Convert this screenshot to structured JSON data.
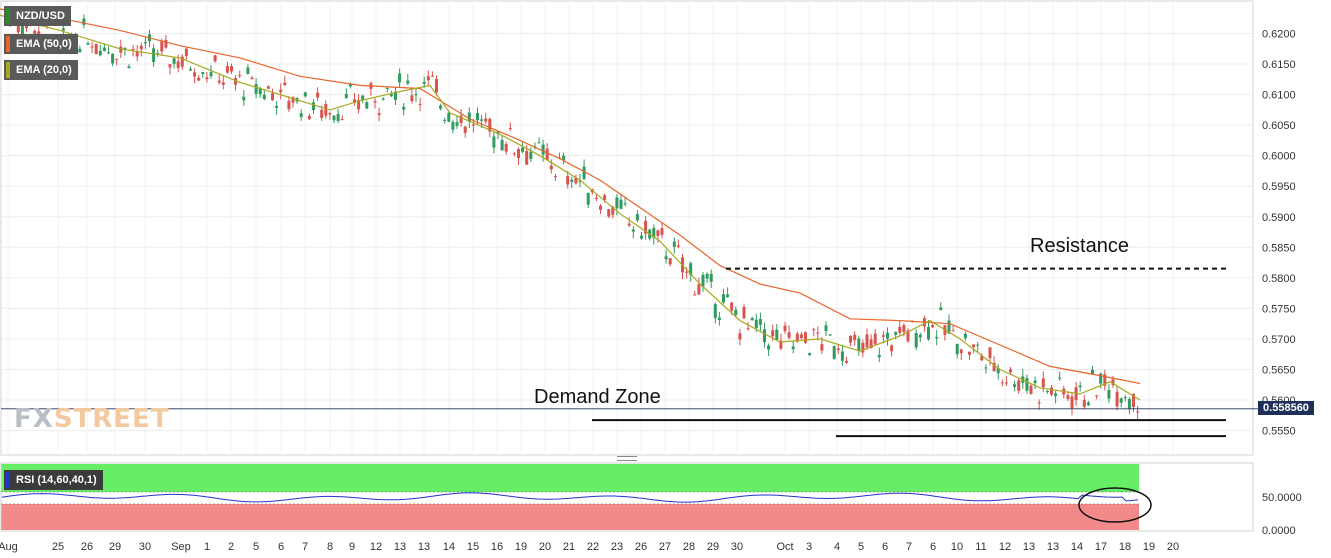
{
  "chart_data": {
    "type": "candlestick",
    "symbol": "NZD/USD",
    "indicators": [
      {
        "name": "EMA (50,0)",
        "color": "#e8662a"
      },
      {
        "name": "EMA (20,0)",
        "color": "#a8a81e"
      }
    ],
    "rsi": {
      "label": "RSI (14,60,40,1)",
      "levels": [
        60,
        40
      ],
      "color": "#2233cc",
      "ticks": [
        "50.0000",
        "0.0000"
      ]
    },
    "y_ticks": [
      "0.6200",
      "0.6150",
      "0.6100",
      "0.6050",
      "0.6000",
      "0.5950",
      "0.5900",
      "0.5850",
      "0.5800",
      "0.5750",
      "0.5700",
      "0.5650",
      "0.5600",
      "0.5550"
    ],
    "ylim": [
      0.551,
      0.6245
    ],
    "current_price": "0.558560",
    "x_ticks": [
      "Aug",
      "25",
      "26",
      "29",
      "30",
      "Sep",
      "1",
      "2",
      "5",
      "6",
      "7",
      "8",
      "9",
      "12",
      "13",
      "13",
      "14",
      "15",
      "16",
      "19",
      "20",
      "21",
      "22",
      "23",
      "26",
      "27",
      "28",
      "29",
      "30",
      "Oct",
      "3",
      "4",
      "5",
      "6",
      "7",
      "6",
      "10",
      "11",
      "12",
      "13",
      "13",
      "14",
      "17",
      "18",
      "19",
      "20"
    ],
    "annotations": {
      "resistance_label": "Resistance",
      "resistance_level": 0.5815,
      "demand_label": "Demand Zone",
      "demand_levels": [
        0.5567,
        0.5541
      ]
    },
    "ema50": [
      [
        0,
        0.624
      ],
      [
        60,
        0.6225
      ],
      [
        120,
        0.6205
      ],
      [
        180,
        0.618
      ],
      [
        240,
        0.616
      ],
      [
        300,
        0.613
      ],
      [
        360,
        0.6115
      ],
      [
        420,
        0.611
      ],
      [
        470,
        0.606
      ],
      [
        520,
        0.6025
      ],
      [
        560,
        0.5995
      ],
      [
        600,
        0.596
      ],
      [
        640,
        0.5915
      ],
      [
        680,
        0.587
      ],
      [
        720,
        0.582
      ],
      [
        760,
        0.579
      ],
      [
        800,
        0.5775
      ],
      [
        850,
        0.5733
      ],
      [
        900,
        0.573
      ],
      [
        950,
        0.5725
      ],
      [
        1000,
        0.569
      ],
      [
        1050,
        0.5655
      ],
      [
        1100,
        0.564
      ],
      [
        1140,
        0.5627
      ]
    ],
    "ema20": [
      [
        0,
        0.623
      ],
      [
        60,
        0.6205
      ],
      [
        120,
        0.6175
      ],
      [
        180,
        0.616
      ],
      [
        240,
        0.612
      ],
      [
        300,
        0.609
      ],
      [
        330,
        0.6075
      ],
      [
        360,
        0.609
      ],
      [
        400,
        0.6105
      ],
      [
        430,
        0.6115
      ],
      [
        450,
        0.607
      ],
      [
        500,
        0.6035
      ],
      [
        540,
        0.6
      ],
      [
        580,
        0.596
      ],
      [
        620,
        0.5905
      ],
      [
        660,
        0.586
      ],
      [
        700,
        0.579
      ],
      [
        740,
        0.573
      ],
      [
        780,
        0.5695
      ],
      [
        820,
        0.57
      ],
      [
        860,
        0.568
      ],
      [
        900,
        0.5705
      ],
      [
        930,
        0.573
      ],
      [
        960,
        0.57
      ],
      [
        1000,
        0.565
      ],
      [
        1040,
        0.562
      ],
      [
        1080,
        0.561
      ],
      [
        1110,
        0.563
      ],
      [
        1140,
        0.56
      ]
    ]
  }
}
